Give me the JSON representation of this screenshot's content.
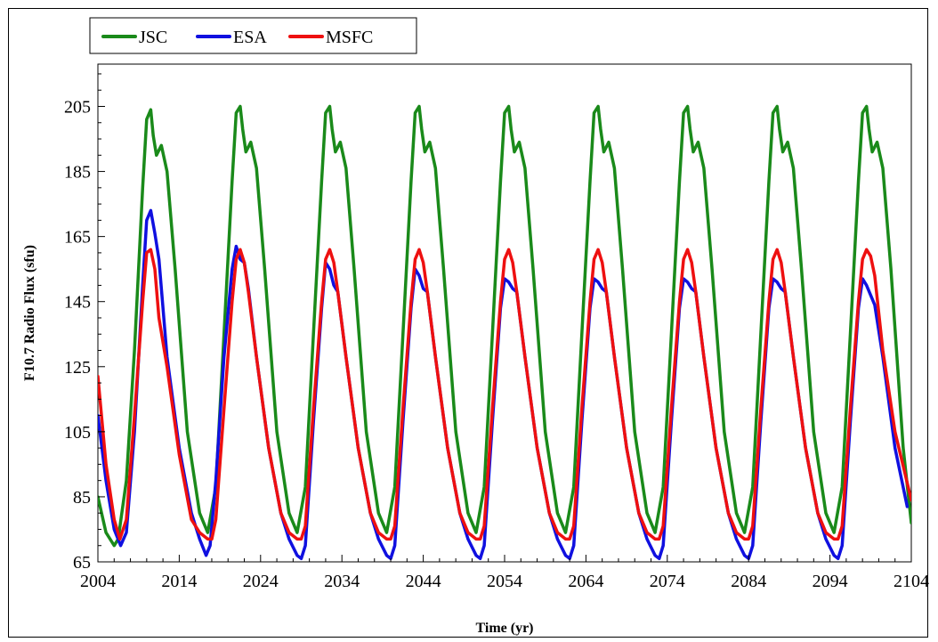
{
  "chart_data": {
    "type": "line",
    "title": "",
    "xlabel": "Time (yr)",
    "ylabel": "F10.7 Radio Flux (sfu)",
    "xlim": [
      2004,
      2104
    ],
    "ylim": [
      65,
      218
    ],
    "xticks": [
      2004,
      2014,
      2024,
      2034,
      2044,
      2054,
      2064,
      2074,
      2084,
      2094,
      2104
    ],
    "yticks": [
      65,
      85,
      105,
      125,
      145,
      165,
      185,
      205
    ],
    "grid": false,
    "legend_position": "top-left",
    "series": [
      {
        "name": "JSC",
        "color": "#1a8a1a",
        "x": [
          2004.0,
          2005.0,
          2006.0,
          2006.5,
          2007.5,
          2008.5,
          2009.5,
          2010.0,
          2010.5,
          2010.8,
          2011.2,
          2011.8,
          2012.5,
          2013.5,
          2015.0,
          2016.5,
          2017.5,
          2018.5,
          2019.5,
          2020.5,
          2021.0,
          2021.5,
          2021.8,
          2022.2,
          2022.8,
          2023.5,
          2024.5,
          2026.0,
          2027.5,
          2028.5,
          2029.5,
          2030.5,
          2031.5,
          2032.0,
          2032.5,
          2032.8,
          2033.2,
          2033.8,
          2034.5,
          2035.5,
          2037.0,
          2038.5,
          2039.5,
          2040.5,
          2041.5,
          2042.5,
          2043.0,
          2043.5,
          2043.8,
          2044.2,
          2044.8,
          2045.5,
          2046.5,
          2048.0,
          2049.5,
          2050.5,
          2051.5,
          2052.5,
          2053.5,
          2054.0,
          2054.5,
          2054.8,
          2055.2,
          2055.8,
          2056.5,
          2057.5,
          2059.0,
          2060.5,
          2061.5,
          2062.5,
          2063.5,
          2064.5,
          2065.0,
          2065.5,
          2065.8,
          2066.2,
          2066.8,
          2067.5,
          2068.5,
          2070.0,
          2071.5,
          2072.5,
          2073.5,
          2074.5,
          2075.5,
          2076.0,
          2076.5,
          2076.8,
          2077.2,
          2077.8,
          2078.5,
          2079.5,
          2081.0,
          2082.5,
          2083.5,
          2084.5,
          2085.5,
          2086.5,
          2087.0,
          2087.5,
          2087.8,
          2088.2,
          2088.8,
          2089.5,
          2090.5,
          2092.0,
          2093.5,
          2094.5,
          2095.5,
          2096.5,
          2097.5,
          2098.0,
          2098.5,
          2098.8,
          2099.2,
          2099.8,
          2100.5,
          2101.5,
          2103.0,
          2104.0
        ],
        "y": [
          85,
          74,
          70,
          72,
          90,
          130,
          180,
          201,
          204,
          196,
          190,
          193,
          185,
          155,
          105,
          80,
          74,
          88,
          135,
          182,
          203,
          205,
          198,
          191,
          194,
          186,
          155,
          105,
          80,
          74,
          88,
          135,
          182,
          203,
          205,
          198,
          191,
          194,
          186,
          155,
          105,
          80,
          74,
          88,
          135,
          182,
          203,
          205,
          198,
          191,
          194,
          186,
          155,
          105,
          80,
          74,
          88,
          135,
          182,
          203,
          205,
          198,
          191,
          194,
          186,
          155,
          105,
          80,
          74,
          88,
          135,
          182,
          203,
          205,
          198,
          191,
          194,
          186,
          155,
          105,
          80,
          74,
          88,
          135,
          182,
          203,
          205,
          198,
          191,
          194,
          186,
          155,
          105,
          80,
          74,
          88,
          135,
          182,
          203,
          205,
          198,
          191,
          194,
          186,
          155,
          105,
          80,
          74,
          88,
          135,
          182,
          203,
          205,
          198,
          191,
          194,
          186,
          155,
          100,
          77
        ]
      },
      {
        "name": "ESA",
        "color": "#1010e0",
        "x": [
          2004.0,
          2005.0,
          2006.0,
          2006.8,
          2007.5,
          2008.5,
          2009.5,
          2010.0,
          2010.5,
          2011.0,
          2011.5,
          2012.5,
          2014.0,
          2015.5,
          2016.5,
          2017.3,
          2017.8,
          2018.5,
          2019.5,
          2020.5,
          2021.0,
          2021.5,
          2022.0,
          2022.5,
          2023.5,
          2025.0,
          2026.5,
          2027.5,
          2028.5,
          2029.0,
          2029.5,
          2030.5,
          2031.5,
          2032.0,
          2032.5,
          2033.0,
          2033.5,
          2034.5,
          2036.0,
          2037.5,
          2038.5,
          2039.5,
          2040.0,
          2040.5,
          2041.5,
          2042.5,
          2043.0,
          2043.5,
          2044.0,
          2044.5,
          2045.5,
          2047.0,
          2048.5,
          2049.5,
          2050.5,
          2051.0,
          2051.5,
          2052.5,
          2053.5,
          2054.0,
          2054.5,
          2055.0,
          2055.5,
          2056.5,
          2058.0,
          2059.5,
          2060.5,
          2061.5,
          2062.0,
          2062.5,
          2063.5,
          2064.5,
          2065.0,
          2065.5,
          2066.0,
          2066.5,
          2067.5,
          2069.0,
          2070.5,
          2071.5,
          2072.5,
          2073.0,
          2073.5,
          2074.5,
          2075.5,
          2076.0,
          2076.5,
          2077.0,
          2077.5,
          2078.5,
          2080.0,
          2081.5,
          2082.5,
          2083.5,
          2084.0,
          2084.5,
          2085.5,
          2086.5,
          2087.0,
          2087.5,
          2088.0,
          2088.5,
          2089.5,
          2091.0,
          2092.5,
          2093.5,
          2094.5,
          2095.0,
          2095.5,
          2096.5,
          2097.5,
          2098.0,
          2098.5,
          2099.0,
          2099.5,
          2100.5,
          2102.0,
          2103.5
        ],
        "y": [
          110,
          90,
          75,
          70,
          74,
          105,
          150,
          170,
          173,
          166,
          158,
          128,
          100,
          80,
          72,
          67,
          70,
          90,
          128,
          155,
          162,
          158,
          157,
          149,
          128,
          100,
          80,
          72,
          67,
          66,
          70,
          108,
          143,
          157,
          155,
          150,
          148,
          128,
          100,
          80,
          72,
          67,
          66,
          70,
          108,
          143,
          155,
          153,
          149,
          148,
          128,
          100,
          80,
          72,
          67,
          66,
          70,
          108,
          143,
          152,
          151,
          149,
          148,
          128,
          100,
          80,
          72,
          67,
          66,
          70,
          108,
          143,
          152,
          151,
          149,
          148,
          128,
          100,
          80,
          72,
          67,
          66,
          70,
          108,
          143,
          152,
          151,
          149,
          148,
          128,
          100,
          80,
          72,
          67,
          66,
          70,
          108,
          143,
          152,
          151,
          149,
          148,
          128,
          100,
          80,
          72,
          67,
          66,
          70,
          108,
          143,
          152,
          150,
          147,
          144,
          128,
          100,
          82
        ]
      },
      {
        "name": "MSFC",
        "color": "#ee1010",
        "x": [
          2004.0,
          2005.0,
          2006.0,
          2006.7,
          2007.5,
          2008.5,
          2009.5,
          2010.0,
          2010.5,
          2011.0,
          2011.5,
          2012.5,
          2014.0,
          2015.5,
          2016.5,
          2017.5,
          2018.0,
          2018.5,
          2019.5,
          2020.5,
          2021.0,
          2021.5,
          2022.0,
          2022.5,
          2023.5,
          2025.0,
          2026.5,
          2027.5,
          2028.5,
          2029.0,
          2029.5,
          2030.5,
          2031.5,
          2032.0,
          2032.5,
          2033.0,
          2033.5,
          2034.5,
          2036.0,
          2037.5,
          2038.5,
          2039.5,
          2040.0,
          2040.5,
          2041.5,
          2042.5,
          2043.0,
          2043.5,
          2044.0,
          2044.5,
          2045.5,
          2047.0,
          2048.5,
          2049.5,
          2050.5,
          2051.0,
          2051.5,
          2052.5,
          2053.5,
          2054.0,
          2054.5,
          2055.0,
          2055.5,
          2056.5,
          2058.0,
          2059.5,
          2060.5,
          2061.5,
          2062.0,
          2062.5,
          2063.5,
          2064.5,
          2065.0,
          2065.5,
          2066.0,
          2066.5,
          2067.5,
          2069.0,
          2070.5,
          2071.5,
          2072.5,
          2073.0,
          2073.5,
          2074.5,
          2075.5,
          2076.0,
          2076.5,
          2077.0,
          2077.5,
          2078.5,
          2080.0,
          2081.5,
          2082.5,
          2083.5,
          2084.0,
          2084.5,
          2085.5,
          2086.5,
          2087.0,
          2087.5,
          2088.0,
          2088.5,
          2089.5,
          2091.0,
          2092.5,
          2093.5,
          2094.5,
          2095.0,
          2095.5,
          2096.5,
          2097.5,
          2098.0,
          2098.5,
          2099.0,
          2099.5,
          2100.5,
          2102.0,
          2104.0
        ],
        "y": [
          122,
          95,
          78,
          72,
          78,
          110,
          145,
          160,
          161,
          155,
          140,
          125,
          98,
          78,
          74,
          72,
          72,
          78,
          112,
          145,
          158,
          161,
          157,
          148,
          128,
          100,
          80,
          74,
          72,
          72,
          76,
          112,
          145,
          158,
          161,
          157,
          148,
          128,
          100,
          80,
          74,
          72,
          72,
          76,
          112,
          145,
          158,
          161,
          157,
          148,
          128,
          100,
          80,
          74,
          72,
          72,
          76,
          112,
          145,
          158,
          161,
          157,
          148,
          128,
          100,
          80,
          74,
          72,
          72,
          76,
          112,
          145,
          158,
          161,
          157,
          148,
          128,
          100,
          80,
          74,
          72,
          72,
          76,
          112,
          145,
          158,
          161,
          157,
          148,
          128,
          100,
          80,
          74,
          72,
          72,
          76,
          112,
          145,
          158,
          161,
          157,
          148,
          128,
          100,
          80,
          74,
          72,
          72,
          76,
          112,
          145,
          158,
          161,
          159,
          153,
          130,
          105,
          84
        ]
      }
    ]
  }
}
